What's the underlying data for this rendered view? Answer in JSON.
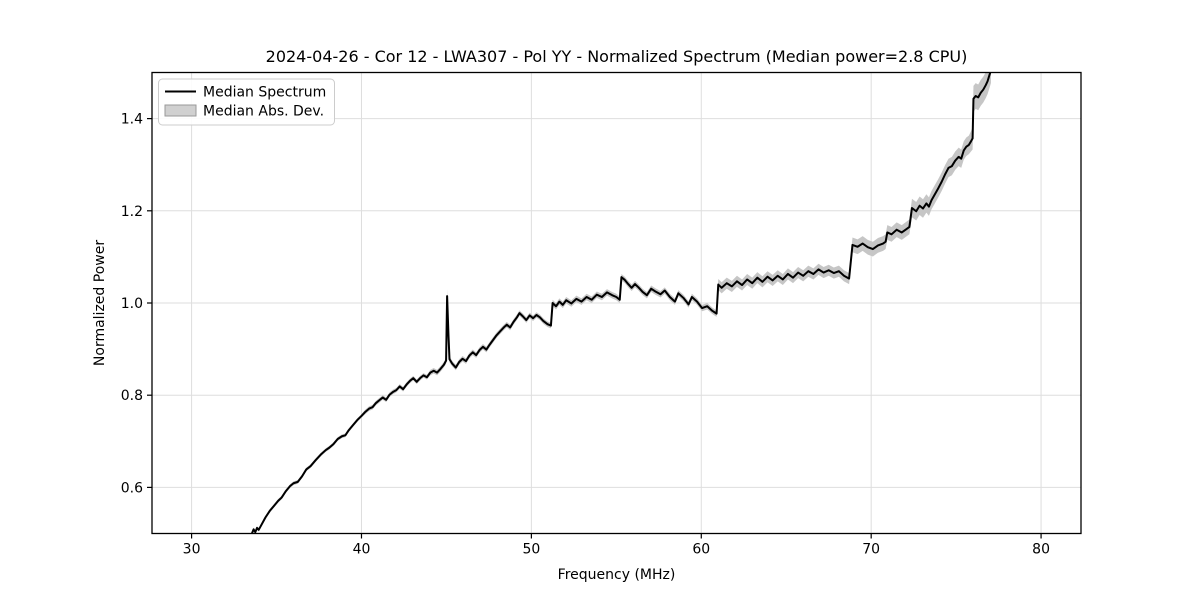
{
  "chart_data": {
    "type": "line",
    "title": "2024-04-26 - Cor 12 - LWA307 - Pol YY - Normalized Spectrum (Median power=2.8 CPU)",
    "xlabel": "Frequency (MHz)",
    "ylabel": "Normalized Power",
    "xlim": [
      27.67,
      82.35
    ],
    "ylim": [
      0.5,
      1.5
    ],
    "grid": true,
    "xticks": {
      "values": [
        30,
        40,
        50,
        60,
        70,
        80
      ],
      "labels": [
        "30",
        "40",
        "50",
        "60",
        "70",
        "80"
      ]
    },
    "yticks": {
      "values": [
        0.6,
        0.8,
        1.0,
        1.2,
        1.4
      ],
      "labels": [
        "0.6",
        "0.8",
        "1.0",
        "1.2",
        "1.4"
      ]
    },
    "legend": {
      "position": "upper left",
      "entries": [
        {
          "label": "Median Spectrum",
          "type": "line"
        },
        {
          "label": "Median Abs. Dev.",
          "type": "patch"
        }
      ]
    },
    "colors": {
      "line": "#000000",
      "band": "#c6c6c6",
      "grid": "#dedede",
      "spine": "#000000",
      "legend_border": "#cccccc",
      "legend_patch_fill": "#d0d0d0",
      "legend_patch_border": "#999999"
    },
    "series": [
      {
        "name": "Median Spectrum",
        "band_name": "Median Abs. Dev.",
        "points_fvm": [
          [
            33.55,
            0.5,
            0.004
          ],
          [
            33.65,
            0.509,
            0.004
          ],
          [
            33.75,
            0.503,
            0.004
          ],
          [
            33.85,
            0.512,
            0.004
          ],
          [
            33.95,
            0.508,
            0.004
          ],
          [
            34.1,
            0.518,
            0.004
          ],
          [
            34.35,
            0.535,
            0.004
          ],
          [
            34.6,
            0.549,
            0.004
          ],
          [
            34.85,
            0.56,
            0.004
          ],
          [
            35.1,
            0.571,
            0.004
          ],
          [
            35.3,
            0.578,
            0.004
          ],
          [
            35.55,
            0.592,
            0.004
          ],
          [
            35.8,
            0.603,
            0.004
          ],
          [
            36.0,
            0.609,
            0.004
          ],
          [
            36.25,
            0.612,
            0.004
          ],
          [
            36.5,
            0.624,
            0.004
          ],
          [
            36.75,
            0.639,
            0.004
          ],
          [
            37.0,
            0.646,
            0.004
          ],
          [
            37.3,
            0.659,
            0.004
          ],
          [
            37.6,
            0.671,
            0.004
          ],
          [
            37.9,
            0.681,
            0.004
          ],
          [
            38.1,
            0.686,
            0.004
          ],
          [
            38.35,
            0.694,
            0.004
          ],
          [
            38.6,
            0.705,
            0.004
          ],
          [
            38.85,
            0.711,
            0.004
          ],
          [
            39.05,
            0.713,
            0.004
          ],
          [
            39.25,
            0.724,
            0.004
          ],
          [
            39.5,
            0.735,
            0.004
          ],
          [
            39.75,
            0.746,
            0.004
          ],
          [
            40.0,
            0.755,
            0.004
          ],
          [
            40.2,
            0.763,
            0.005
          ],
          [
            40.45,
            0.771,
            0.005
          ],
          [
            40.65,
            0.774,
            0.005
          ],
          [
            40.85,
            0.783,
            0.005
          ],
          [
            41.05,
            0.789,
            0.005
          ],
          [
            41.25,
            0.795,
            0.005
          ],
          [
            41.45,
            0.79,
            0.005
          ],
          [
            41.65,
            0.801,
            0.005
          ],
          [
            41.85,
            0.807,
            0.005
          ],
          [
            42.05,
            0.811,
            0.005
          ],
          [
            42.25,
            0.819,
            0.005
          ],
          [
            42.45,
            0.813,
            0.005
          ],
          [
            42.65,
            0.823,
            0.005
          ],
          [
            42.85,
            0.831,
            0.005
          ],
          [
            43.05,
            0.837,
            0.005
          ],
          [
            43.25,
            0.829,
            0.005
          ],
          [
            43.45,
            0.837,
            0.005
          ],
          [
            43.65,
            0.843,
            0.005
          ],
          [
            43.85,
            0.839,
            0.005
          ],
          [
            44.05,
            0.849,
            0.006
          ],
          [
            44.25,
            0.853,
            0.006
          ],
          [
            44.45,
            0.849,
            0.006
          ],
          [
            44.65,
            0.857,
            0.006
          ],
          [
            44.85,
            0.866,
            0.006
          ],
          [
            44.98,
            0.875,
            0.007
          ],
          [
            45.04,
            1.015,
            0.015
          ],
          [
            45.12,
            0.93,
            0.01
          ],
          [
            45.18,
            0.878,
            0.007
          ],
          [
            45.35,
            0.868,
            0.006
          ],
          [
            45.55,
            0.86,
            0.006
          ],
          [
            45.75,
            0.872,
            0.006
          ],
          [
            45.95,
            0.879,
            0.006
          ],
          [
            46.15,
            0.874,
            0.006
          ],
          [
            46.35,
            0.886,
            0.006
          ],
          [
            46.55,
            0.893,
            0.006
          ],
          [
            46.75,
            0.887,
            0.006
          ],
          [
            46.95,
            0.898,
            0.006
          ],
          [
            47.15,
            0.905,
            0.006
          ],
          [
            47.35,
            0.899,
            0.006
          ],
          [
            47.55,
            0.91,
            0.006
          ],
          [
            47.75,
            0.92,
            0.006
          ],
          [
            47.95,
            0.93,
            0.006
          ],
          [
            48.15,
            0.938,
            0.006
          ],
          [
            48.35,
            0.946,
            0.006
          ],
          [
            48.55,
            0.953,
            0.006
          ],
          [
            48.75,
            0.947,
            0.006
          ],
          [
            48.95,
            0.959,
            0.006
          ],
          [
            49.15,
            0.969,
            0.006
          ],
          [
            49.3,
            0.978,
            0.006
          ],
          [
            49.5,
            0.971,
            0.006
          ],
          [
            49.7,
            0.963,
            0.006
          ],
          [
            49.9,
            0.973,
            0.006
          ],
          [
            50.1,
            0.967,
            0.006
          ],
          [
            50.3,
            0.974,
            0.006
          ],
          [
            50.5,
            0.969,
            0.006
          ],
          [
            50.7,
            0.961,
            0.006
          ],
          [
            50.95,
            0.954,
            0.006
          ],
          [
            51.15,
            0.951,
            0.006
          ],
          [
            51.25,
            1.0,
            0.007
          ],
          [
            51.45,
            0.993,
            0.007
          ],
          [
            51.65,
            1.003,
            0.007
          ],
          [
            51.85,
            0.996,
            0.007
          ],
          [
            52.05,
            1.006,
            0.007
          ],
          [
            52.35,
            0.999,
            0.007
          ],
          [
            52.65,
            1.009,
            0.007
          ],
          [
            52.95,
            1.003,
            0.007
          ],
          [
            53.25,
            1.013,
            0.007
          ],
          [
            53.55,
            1.007,
            0.007
          ],
          [
            53.85,
            1.018,
            0.007
          ],
          [
            54.15,
            1.013,
            0.007
          ],
          [
            54.45,
            1.023,
            0.007
          ],
          [
            54.75,
            1.017,
            0.007
          ],
          [
            55.0,
            1.013,
            0.007
          ],
          [
            55.2,
            1.007,
            0.007
          ],
          [
            55.3,
            1.056,
            0.007
          ],
          [
            55.5,
            1.05,
            0.007
          ],
          [
            55.7,
            1.041,
            0.007
          ],
          [
            55.9,
            1.033,
            0.007
          ],
          [
            56.1,
            1.041,
            0.007
          ],
          [
            56.3,
            1.034,
            0.007
          ],
          [
            56.55,
            1.024,
            0.007
          ],
          [
            56.8,
            1.017,
            0.007
          ],
          [
            57.05,
            1.031,
            0.007
          ],
          [
            57.3,
            1.025,
            0.007
          ],
          [
            57.6,
            1.019,
            0.007
          ],
          [
            57.85,
            1.027,
            0.007
          ],
          [
            58.15,
            1.013,
            0.007
          ],
          [
            58.45,
            1.003,
            0.007
          ],
          [
            58.65,
            1.021,
            0.007
          ],
          [
            58.95,
            1.011,
            0.007
          ],
          [
            59.25,
            0.997,
            0.007
          ],
          [
            59.45,
            1.013,
            0.007
          ],
          [
            59.75,
            1.003,
            0.007
          ],
          [
            60.05,
            0.989,
            0.007
          ],
          [
            60.35,
            0.993,
            0.007
          ],
          [
            60.65,
            0.983,
            0.007
          ],
          [
            60.9,
            0.977,
            0.007
          ],
          [
            61.0,
            1.04,
            0.012
          ],
          [
            61.2,
            1.033,
            0.012
          ],
          [
            61.5,
            1.043,
            0.012
          ],
          [
            61.8,
            1.036,
            0.012
          ],
          [
            62.1,
            1.047,
            0.012
          ],
          [
            62.4,
            1.039,
            0.012
          ],
          [
            62.7,
            1.051,
            0.012
          ],
          [
            63.0,
            1.043,
            0.012
          ],
          [
            63.3,
            1.055,
            0.012
          ],
          [
            63.6,
            1.046,
            0.012
          ],
          [
            63.9,
            1.057,
            0.012
          ],
          [
            64.2,
            1.049,
            0.012
          ],
          [
            64.5,
            1.059,
            0.012
          ],
          [
            64.8,
            1.051,
            0.012
          ],
          [
            65.1,
            1.063,
            0.012
          ],
          [
            65.4,
            1.055,
            0.012
          ],
          [
            65.7,
            1.066,
            0.012
          ],
          [
            66.0,
            1.059,
            0.012
          ],
          [
            66.3,
            1.069,
            0.012
          ],
          [
            66.6,
            1.063,
            0.012
          ],
          [
            66.9,
            1.073,
            0.012
          ],
          [
            67.2,
            1.066,
            0.012
          ],
          [
            67.5,
            1.071,
            0.012
          ],
          [
            67.8,
            1.065,
            0.012
          ],
          [
            68.1,
            1.069,
            0.012
          ],
          [
            68.4,
            1.059,
            0.012
          ],
          [
            68.7,
            1.053,
            0.012
          ],
          [
            68.9,
            1.126,
            0.016
          ],
          [
            69.2,
            1.122,
            0.016
          ],
          [
            69.5,
            1.129,
            0.016
          ],
          [
            69.8,
            1.121,
            0.016
          ],
          [
            70.1,
            1.117,
            0.016
          ],
          [
            70.4,
            1.125,
            0.016
          ],
          [
            70.7,
            1.129,
            0.016
          ],
          [
            70.85,
            1.133,
            0.016
          ],
          [
            70.95,
            1.153,
            0.016
          ],
          [
            71.2,
            1.149,
            0.016
          ],
          [
            71.5,
            1.159,
            0.016
          ],
          [
            71.8,
            1.153,
            0.016
          ],
          [
            72.1,
            1.161,
            0.016
          ],
          [
            72.25,
            1.165,
            0.016
          ],
          [
            72.4,
            1.206,
            0.02
          ],
          [
            72.65,
            1.199,
            0.02
          ],
          [
            72.85,
            1.211,
            0.02
          ],
          [
            73.05,
            1.205,
            0.02
          ],
          [
            73.25,
            1.216,
            0.02
          ],
          [
            73.4,
            1.209,
            0.02
          ],
          [
            73.55,
            1.223,
            0.02
          ],
          [
            73.75,
            1.236,
            0.02
          ],
          [
            73.95,
            1.249,
            0.02
          ],
          [
            74.15,
            1.263,
            0.02
          ],
          [
            74.35,
            1.279,
            0.02
          ],
          [
            74.55,
            1.293,
            0.02
          ],
          [
            74.75,
            1.297,
            0.02
          ],
          [
            74.95,
            1.309,
            0.02
          ],
          [
            75.15,
            1.317,
            0.02
          ],
          [
            75.3,
            1.313,
            0.02
          ],
          [
            75.45,
            1.331,
            0.02
          ],
          [
            75.6,
            1.339,
            0.02
          ],
          [
            75.75,
            1.343,
            0.02
          ],
          [
            75.88,
            1.351,
            0.022
          ],
          [
            75.97,
            1.357,
            0.024
          ],
          [
            76.02,
            1.443,
            0.028
          ],
          [
            76.15,
            1.449,
            0.028
          ],
          [
            76.3,
            1.446,
            0.028
          ],
          [
            76.45,
            1.456,
            0.028
          ],
          [
            76.6,
            1.463,
            0.028
          ],
          [
            76.75,
            1.473,
            0.028
          ],
          [
            76.85,
            1.481,
            0.028
          ],
          [
            76.95,
            1.493,
            0.028
          ],
          [
            77.05,
            1.505,
            0.028
          ]
        ]
      }
    ]
  }
}
